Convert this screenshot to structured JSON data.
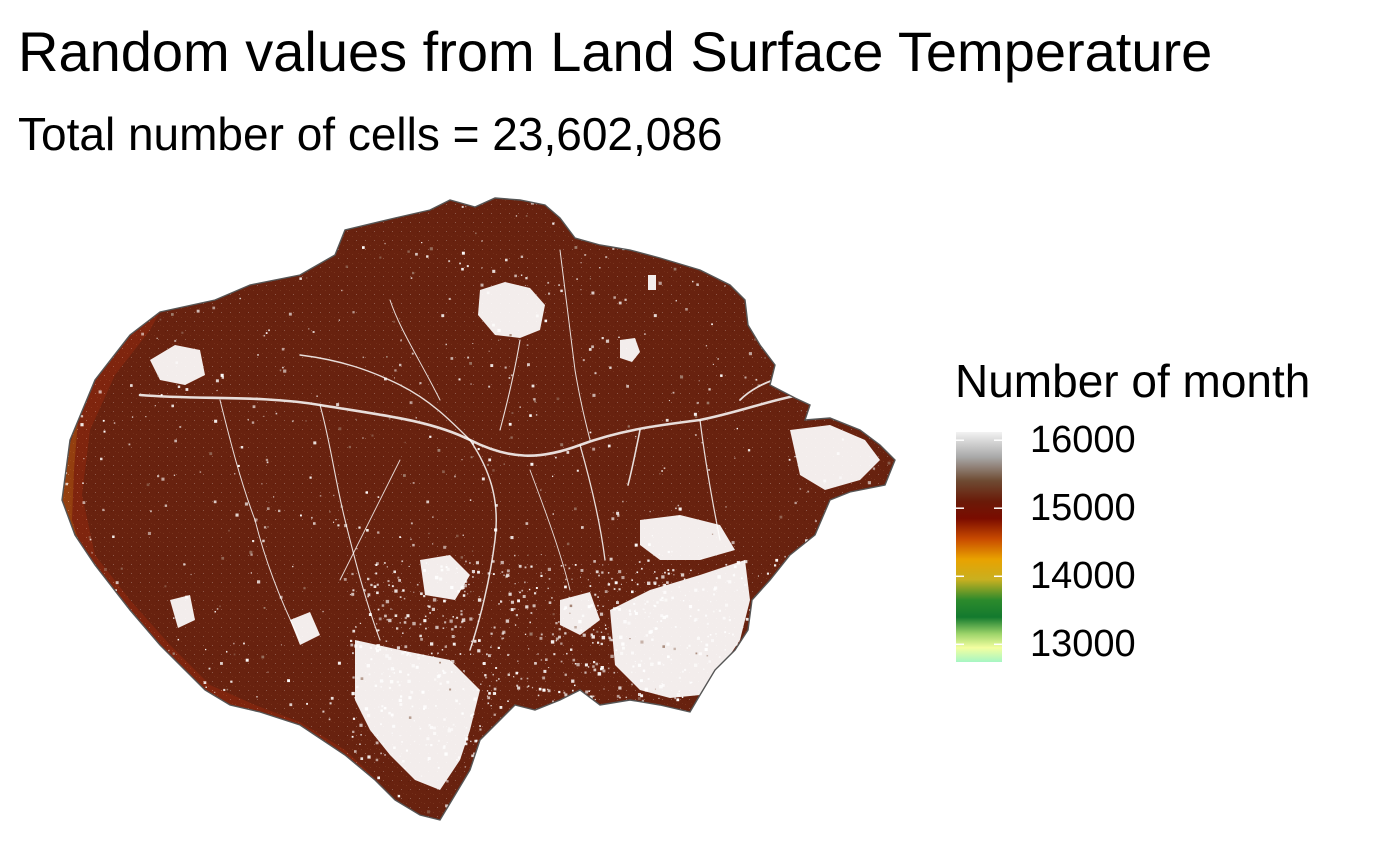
{
  "title": "Random values from Land Surface Temperature",
  "subtitle": "Total number of cells = 23,602,086",
  "legend": {
    "title": "Number of month",
    "ticks": [
      {
        "value": 16000,
        "label": "16000"
      },
      {
        "value": 15000,
        "label": "15000"
      },
      {
        "value": 14000,
        "label": "14000"
      },
      {
        "value": 13000,
        "label": "13000"
      }
    ],
    "range": [
      12740,
      16120
    ],
    "gradient": [
      {
        "value": 16120,
        "color": "#f2f2f2"
      },
      {
        "value": 15750,
        "color": "#a8a8a8"
      },
      {
        "value": 15400,
        "color": "#6e4a32"
      },
      {
        "value": 15100,
        "color": "#6a1a08"
      },
      {
        "value": 14850,
        "color": "#7a0c00"
      },
      {
        "value": 14550,
        "color": "#c84a00"
      },
      {
        "value": 14250,
        "color": "#e9a200"
      },
      {
        "value": 13950,
        "color": "#c8b020"
      },
      {
        "value": 13650,
        "color": "#2c8a2c"
      },
      {
        "value": 13400,
        "color": "#137a2e"
      },
      {
        "value": 13150,
        "color": "#9ed56a"
      },
      {
        "value": 12950,
        "color": "#f3ffa0"
      },
      {
        "value": 12740,
        "color": "#a6f6c4"
      }
    ]
  },
  "colors": {
    "land": "#6a230f",
    "land_texture": "#4f1a0a",
    "border": "#555555",
    "gaps": "#ffffff",
    "edge_warm": "#b8300c",
    "edge_hot": "#e08a10"
  }
}
